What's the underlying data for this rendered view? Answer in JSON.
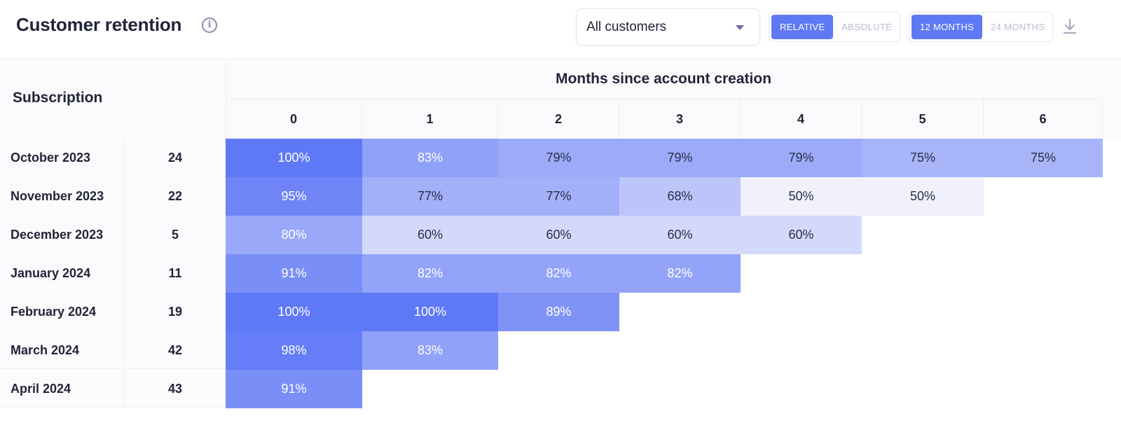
{
  "header": {
    "title": "Customer retention",
    "info_icon": "info-icon",
    "segment_select": {
      "value": "All customers",
      "icon": "chevron-down-icon"
    },
    "mode_toggle": [
      {
        "label": "RELATIVE",
        "active": true
      },
      {
        "label": "ABSOLUTE",
        "active": false
      }
    ],
    "range_toggle": [
      {
        "label": "12 MONTHS",
        "active": true
      },
      {
        "label": "24 MONTHS",
        "active": false
      }
    ],
    "download_icon": "download-icon"
  },
  "table": {
    "row_header": "Subscription",
    "column_group_title": "Months since account creation",
    "columns": [
      "0",
      "1",
      "2",
      "3",
      "4",
      "5",
      "6"
    ],
    "rows": [
      {
        "label": "October 2023",
        "count": "24",
        "values": [
          "100%",
          "83%",
          "79%",
          "79%",
          "79%",
          "75%",
          "75%"
        ]
      },
      {
        "label": "November 2023",
        "count": "22",
        "values": [
          "95%",
          "77%",
          "77%",
          "68%",
          "50%",
          "50%"
        ]
      },
      {
        "label": "December 2023",
        "count": "5",
        "values": [
          "80%",
          "60%",
          "60%",
          "60%",
          "60%"
        ]
      },
      {
        "label": "January 2024",
        "count": "11",
        "values": [
          "91%",
          "82%",
          "82%",
          "82%"
        ]
      },
      {
        "label": "February 2024",
        "count": "19",
        "values": [
          "100%",
          "100%",
          "89%"
        ]
      },
      {
        "label": "March 2024",
        "count": "42",
        "values": [
          "98%",
          "83%"
        ]
      },
      {
        "label": "April 2024",
        "count": "43",
        "values": [
          "91%"
        ]
      }
    ]
  },
  "colors": {
    "accent": "#5f79f4",
    "heat_max": "#5f78f6",
    "heat_min": "#f0f1fc"
  }
}
